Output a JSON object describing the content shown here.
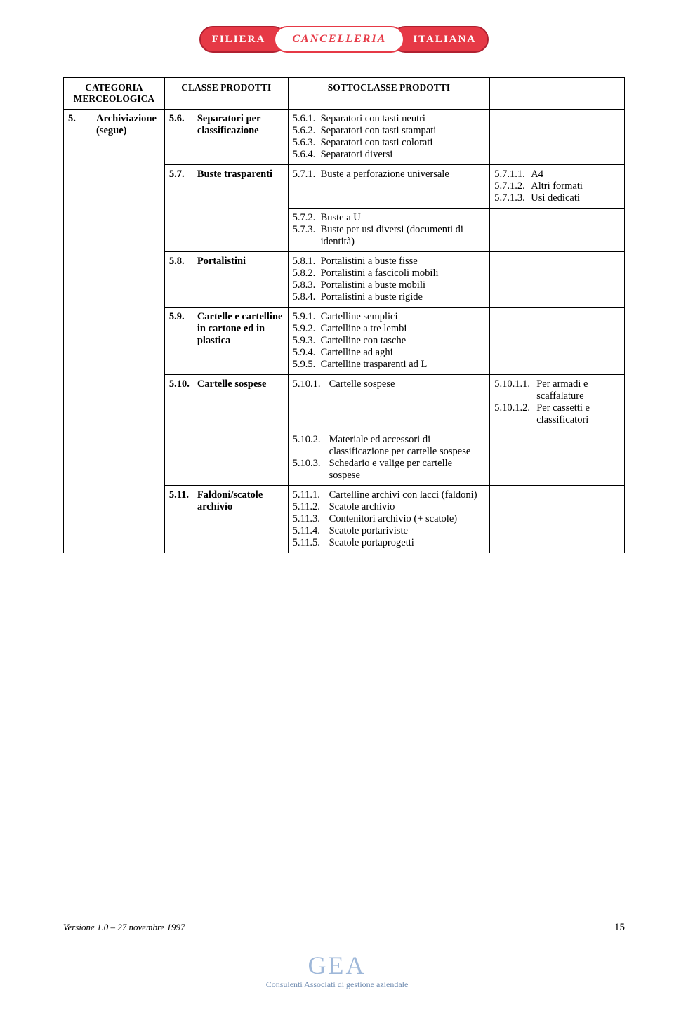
{
  "logo": {
    "left": "FILIERA",
    "mid": "CANCELLERIA",
    "right": "ITALIANA"
  },
  "headers": {
    "col1": "CATEGORIA MERCEOLOGICA",
    "col2": "CLASSE PRODOTTI",
    "col3": "SOTTOCLASSE PRODOTTI",
    "col4": ""
  },
  "cat": {
    "code": "5.",
    "label": "Archiviazione (segue)"
  },
  "r56": {
    "class_code": "5.6.",
    "class_label": "Separatori per classificazione",
    "sub": [
      {
        "c": "5.6.1.",
        "l": "Separatori con tasti neutri"
      },
      {
        "c": "5.6.2.",
        "l": "Separatori con tasti stampati"
      },
      {
        "c": "5.6.3.",
        "l": "Separatori con tasti colorati"
      },
      {
        "c": "5.6.4.",
        "l": "Separatori diversi"
      }
    ]
  },
  "r57a": {
    "class_code": "5.7.",
    "class_label": "Buste trasparenti",
    "sub": [
      {
        "c": "5.7.1.",
        "l": "Buste a perforazione universale"
      }
    ],
    "det": [
      {
        "c": "5.7.1.1.",
        "l": "A4"
      },
      {
        "c": "5.7.1.2.",
        "l": "Altri formati"
      },
      {
        "c": "5.7.1.3.",
        "l": "Usi dedicati"
      }
    ]
  },
  "r57b": {
    "sub": [
      {
        "c": "5.7.2.",
        "l": "Buste a U"
      },
      {
        "c": "5.7.3.",
        "l": "Buste per usi diversi (documenti di identità)"
      }
    ]
  },
  "r58": {
    "class_code": "5.8.",
    "class_label": "Portalistini",
    "sub": [
      {
        "c": "5.8.1.",
        "l": "Portalistini a buste fisse"
      },
      {
        "c": "5.8.2.",
        "l": "Portalistini a fascicoli mobili"
      },
      {
        "c": "5.8.3.",
        "l": "Portalistini a buste mobili"
      },
      {
        "c": "5.8.4.",
        "l": "Portalistini a buste rigide"
      }
    ]
  },
  "r59": {
    "class_code": "5.9.",
    "class_label": "Cartelle e cartelline in cartone ed in plastica",
    "sub": [
      {
        "c": "5.9.1.",
        "l": "Cartelline semplici"
      },
      {
        "c": "5.9.2.",
        "l": "Cartelline a tre lembi"
      },
      {
        "c": "5.9.3.",
        "l": "Cartelline con tasche"
      },
      {
        "c": "5.9.4.",
        "l": "Cartelline ad aghi"
      },
      {
        "c": "5.9.5.",
        "l": "Cartelline trasparenti ad L"
      }
    ]
  },
  "r510a": {
    "class_code": "5.10.",
    "class_label": "Cartelle sospese",
    "sub": [
      {
        "c": "5.10.1.",
        "l": "Cartelle sospese"
      }
    ],
    "det": [
      {
        "c": "5.10.1.1.",
        "l": "Per armadi e scaffalature"
      },
      {
        "c": "5.10.1.2.",
        "l": "Per cassetti e classificatori"
      }
    ]
  },
  "r510b": {
    "sub": [
      {
        "c": "5.10.2.",
        "l": "Materiale ed accessori di classificazione per cartelle sospese"
      },
      {
        "c": "5.10.3.",
        "l": "Schedario e valige per cartelle sospese"
      }
    ]
  },
  "r511": {
    "class_code": "5.11.",
    "class_label": "Faldoni/scatole archivio",
    "sub": [
      {
        "c": "5.11.1.",
        "l": "Cartelline archivi con lacci (faldoni)"
      },
      {
        "c": "5.11.2.",
        "l": "Scatole archivio"
      },
      {
        "c": "5.11.3.",
        "l": "Contenitori archivio (+ scatole)"
      },
      {
        "c": "5.11.4.",
        "l": "Scatole portariviste"
      },
      {
        "c": "5.11.5.",
        "l": "Scatole portaprogetti"
      }
    ]
  },
  "footer": {
    "version": "Versione 1.0 – 27 novembre 1997",
    "page": "15",
    "gea": "GEA",
    "gea_sub": "Consulenti Associati di gestione aziendale"
  }
}
